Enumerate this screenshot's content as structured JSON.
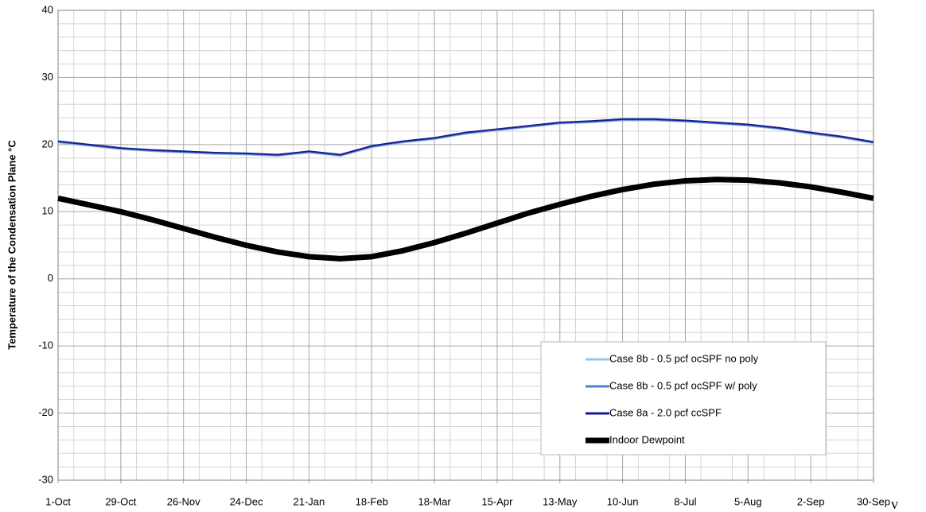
{
  "chart_data": {
    "type": "line",
    "y_label": "Temperature of the Condensation Plane °C",
    "annotation": "v",
    "categories": [
      "1-Oct",
      null,
      "29-Oct",
      null,
      "26-Nov",
      null,
      "24-Dec",
      null,
      "21-Jan",
      null,
      "18-Feb",
      null,
      "18-Mar",
      null,
      "15-Apr",
      null,
      "13-May",
      null,
      "10-Jun",
      null,
      "8-Jul",
      null,
      "5-Aug",
      null,
      "2-Sep",
      null,
      "30-Sep"
    ],
    "series": [
      {
        "name": "Case 8b - 0.5 pcf ocSPF no poly",
        "color": "#9cc3e6",
        "width": 2,
        "values": [
          20.3,
          19.8,
          19.3,
          19.0,
          18.8,
          18.6,
          18.5,
          18.3,
          18.8,
          18.3,
          19.6,
          20.3,
          20.8,
          21.6,
          22.1,
          22.6,
          23.1,
          23.3,
          23.6,
          23.6,
          23.4,
          23.1,
          22.8,
          22.3,
          21.6,
          21.0,
          20.2
        ]
      },
      {
        "name": "Case 8b - 0.5 pcf ocSPF w/ poly",
        "color": "#4a7fd4",
        "width": 2,
        "values": [
          20.4,
          19.9,
          19.4,
          19.1,
          18.9,
          18.7,
          18.6,
          18.4,
          18.9,
          18.4,
          19.7,
          20.4,
          20.9,
          21.7,
          22.2,
          22.7,
          23.2,
          23.4,
          23.7,
          23.7,
          23.5,
          23.2,
          22.9,
          22.4,
          21.7,
          21.1,
          20.3
        ]
      },
      {
        "name": "Case 8a - 2.0 pcf ccSPF",
        "color": "#1c1c8a",
        "width": 2,
        "values": [
          20.5,
          20.0,
          19.5,
          19.2,
          19.0,
          18.8,
          18.7,
          18.5,
          19.0,
          18.5,
          19.8,
          20.5,
          21.0,
          21.8,
          22.3,
          22.8,
          23.3,
          23.5,
          23.8,
          23.8,
          23.6,
          23.3,
          23.0,
          22.5,
          21.8,
          21.2,
          20.4
        ]
      },
      {
        "name": "Indoor Dewpoint",
        "color": "#000000",
        "width": 7,
        "values": [
          12.0,
          11.0,
          10.0,
          8.8,
          7.5,
          6.2,
          5.0,
          4.0,
          3.3,
          3.0,
          3.3,
          4.2,
          5.4,
          6.8,
          8.3,
          9.8,
          11.1,
          12.3,
          13.3,
          14.1,
          14.6,
          14.8,
          14.7,
          14.3,
          13.7,
          12.9,
          12.0
        ]
      }
    ],
    "ylim": [
      -30,
      40
    ],
    "yticks": [
      -30,
      -20,
      -10,
      0,
      10,
      20,
      30,
      40
    ],
    "grid": true,
    "legend": "lower right"
  }
}
